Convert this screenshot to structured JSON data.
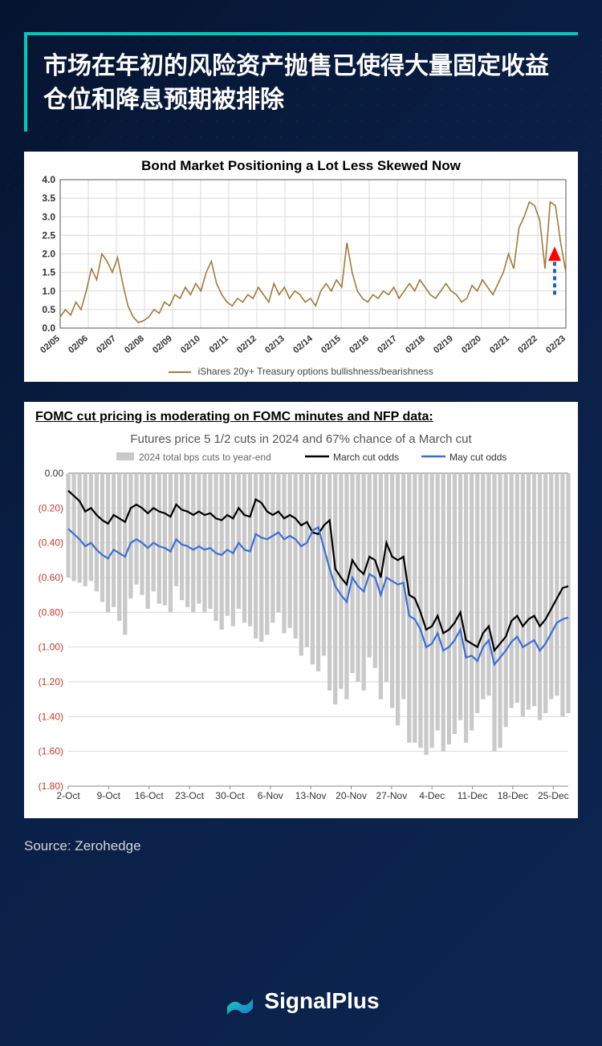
{
  "header": {
    "title": "市场在年初的风险资产抛售已使得大量固定收益仓位和降息预期被排除"
  },
  "chart1": {
    "type": "line",
    "title": "Bond Market Positioning a Lot Less Skewed Now",
    "legend": "iShares 20y+ Treasury options bullishness/bearishness",
    "background_color": "#ffffff",
    "line_color": "#a17a3a",
    "grid_color": "#d9d9d9",
    "axis_color": "#555555",
    "ylim": [
      0.0,
      4.0
    ],
    "ytick_step": 0.5,
    "yticks": [
      "0.0",
      "0.5",
      "1.0",
      "1.5",
      "2.0",
      "2.5",
      "3.0",
      "3.5",
      "4.0"
    ],
    "xticks": [
      "02/05",
      "02/06",
      "02/07",
      "02/08",
      "02/09",
      "02/10",
      "02/11",
      "02/12",
      "02/13",
      "02/14",
      "02/15",
      "02/16",
      "02/17",
      "02/18",
      "02/19",
      "02/20",
      "02/21",
      "02/22",
      "02/23"
    ],
    "arrow": {
      "color_fill": "#ff0000",
      "color_stroke": "#1f5fbf",
      "x_index": 17.6,
      "y_from": 0.9,
      "y_to": 2.2
    },
    "values": [
      0.3,
      0.5,
      0.35,
      0.7,
      0.5,
      1.0,
      1.6,
      1.3,
      2.0,
      1.8,
      1.5,
      1.9,
      1.2,
      0.6,
      0.3,
      0.15,
      0.2,
      0.3,
      0.5,
      0.4,
      0.7,
      0.6,
      0.9,
      0.8,
      1.1,
      0.9,
      1.2,
      1.0,
      1.5,
      1.8,
      1.2,
      0.9,
      0.7,
      0.6,
      0.8,
      0.7,
      0.9,
      0.8,
      1.1,
      0.9,
      0.7,
      1.2,
      0.9,
      1.1,
      0.8,
      1.0,
      0.9,
      0.7,
      0.8,
      0.6,
      1.0,
      1.2,
      1.0,
      1.3,
      1.1,
      2.3,
      1.5,
      1.0,
      0.8,
      0.7,
      0.9,
      0.8,
      1.0,
      0.9,
      1.1,
      0.8,
      1.0,
      1.2,
      1.0,
      1.3,
      1.1,
      0.9,
      0.8,
      1.0,
      1.2,
      1.0,
      0.9,
      0.7,
      0.8,
      1.15,
      1.0,
      1.3,
      1.1,
      0.9,
      1.2,
      1.5,
      2.0,
      1.6,
      2.7,
      3.0,
      3.4,
      3.3,
      2.9,
      1.6,
      3.4,
      3.3,
      2.3,
      1.5
    ]
  },
  "chart2": {
    "type": "bar+line",
    "heading": "FOMC cut pricing is moderating on FOMC minutes and NFP data:",
    "subtitle": "Futures price 5 1/2 cuts in 2024 and 67% chance of a March cut",
    "background_color": "#ffffff",
    "grid_color": "#d9d9d9",
    "axis_color": "#888888",
    "legend": {
      "bars": "2024 total bps cuts to year-end",
      "black": "March cut odds",
      "blue": "May cut odds"
    },
    "bar_color": "#c9c9c9",
    "line_black": "#000000",
    "line_blue": "#3b6fd6",
    "ytick_color": "#c0392b",
    "ylim": [
      -1.8,
      0.0
    ],
    "ytick_step": -0.2,
    "yticks": [
      "0.00",
      "(0.20)",
      "(0.40)",
      "(0.60)",
      "(0.80)",
      "(1.00)",
      "(1.20)",
      "(1.40)",
      "(1.60)",
      "(1.80)"
    ],
    "xticks": [
      "2-Oct",
      "9-Oct",
      "16-Oct",
      "23-Oct",
      "30-Oct",
      "6-Nov",
      "13-Nov",
      "20-Nov",
      "27-Nov",
      "4-Dec",
      "11-Dec",
      "18-Dec",
      "25-Dec"
    ],
    "bars": [
      -0.6,
      -0.62,
      -0.63,
      -0.65,
      -0.62,
      -0.68,
      -0.74,
      -0.8,
      -0.77,
      -0.85,
      -0.93,
      -0.72,
      -0.64,
      -0.7,
      -0.78,
      -0.68,
      -0.75,
      -0.76,
      -0.8,
      -0.65,
      -0.73,
      -0.77,
      -0.8,
      -0.75,
      -0.8,
      -0.78,
      -0.85,
      -0.9,
      -0.82,
      -0.88,
      -0.78,
      -0.86,
      -0.88,
      -0.95,
      -0.97,
      -0.93,
      -0.86,
      -0.8,
      -0.92,
      -0.89,
      -0.95,
      -1.05,
      -1.0,
      -1.1,
      -1.14,
      -1.05,
      -1.25,
      -1.33,
      -1.24,
      -1.3,
      -1.15,
      -1.2,
      -1.25,
      -1.06,
      -1.12,
      -1.3,
      -1.2,
      -1.35,
      -1.45,
      -1.3,
      -1.55,
      -1.55,
      -1.58,
      -1.62,
      -1.58,
      -1.48,
      -1.6,
      -1.56,
      -1.5,
      -1.42,
      -1.55,
      -1.48,
      -1.38,
      -1.3,
      -1.28,
      -1.6,
      -1.58,
      -1.46,
      -1.35,
      -1.32,
      -1.4,
      -1.36,
      -1.34,
      -1.42,
      -1.38,
      -1.3,
      -1.28,
      -1.4,
      -1.38
    ],
    "line_black_values": [
      -0.1,
      -0.13,
      -0.16,
      -0.22,
      -0.2,
      -0.24,
      -0.27,
      -0.29,
      -0.24,
      -0.26,
      -0.28,
      -0.2,
      -0.18,
      -0.2,
      -0.23,
      -0.2,
      -0.22,
      -0.23,
      -0.25,
      -0.18,
      -0.21,
      -0.22,
      -0.24,
      -0.22,
      -0.24,
      -0.23,
      -0.26,
      -0.27,
      -0.24,
      -0.26,
      -0.2,
      -0.24,
      -0.25,
      -0.15,
      -0.17,
      -0.22,
      -0.24,
      -0.22,
      -0.26,
      -0.24,
      -0.26,
      -0.3,
      -0.28,
      -0.34,
      -0.35,
      -0.3,
      -0.27,
      -0.55,
      -0.6,
      -0.64,
      -0.5,
      -0.55,
      -0.58,
      -0.48,
      -0.5,
      -0.6,
      -0.4,
      -0.48,
      -0.5,
      -0.48,
      -0.7,
      -0.72,
      -0.8,
      -0.9,
      -0.88,
      -0.82,
      -0.92,
      -0.9,
      -0.86,
      -0.8,
      -0.96,
      -0.98,
      -1.0,
      -0.92,
      -0.88,
      -1.02,
      -0.98,
      -0.94,
      -0.85,
      -0.82,
      -0.88,
      -0.84,
      -0.82,
      -0.88,
      -0.84,
      -0.78,
      -0.72,
      -0.66,
      -0.65
    ],
    "line_blue_values": [
      -0.32,
      -0.35,
      -0.38,
      -0.42,
      -0.4,
      -0.44,
      -0.47,
      -0.49,
      -0.44,
      -0.46,
      -0.48,
      -0.4,
      -0.38,
      -0.4,
      -0.43,
      -0.4,
      -0.42,
      -0.43,
      -0.45,
      -0.38,
      -0.41,
      -0.42,
      -0.44,
      -0.42,
      -0.44,
      -0.43,
      -0.46,
      -0.47,
      -0.44,
      -0.46,
      -0.4,
      -0.44,
      -0.45,
      -0.35,
      -0.37,
      -0.38,
      -0.36,
      -0.34,
      -0.38,
      -0.36,
      -0.38,
      -0.42,
      -0.4,
      -0.33,
      -0.31,
      -0.43,
      -0.55,
      -0.65,
      -0.7,
      -0.74,
      -0.6,
      -0.65,
      -0.68,
      -0.58,
      -0.6,
      -0.7,
      -0.6,
      -0.62,
      -0.64,
      -0.63,
      -0.82,
      -0.84,
      -0.9,
      -1.0,
      -0.98,
      -0.92,
      -1.02,
      -1.0,
      -0.96,
      -0.9,
      -1.06,
      -1.05,
      -1.08,
      -1.0,
      -0.96,
      -1.1,
      -1.06,
      -1.02,
      -0.97,
      -0.94,
      -1.0,
      -0.98,
      -0.96,
      -1.02,
      -0.98,
      -0.92,
      -0.86,
      -0.84,
      -0.83
    ]
  },
  "source": "Source: Zerohedge",
  "brand": "SignalPlus"
}
